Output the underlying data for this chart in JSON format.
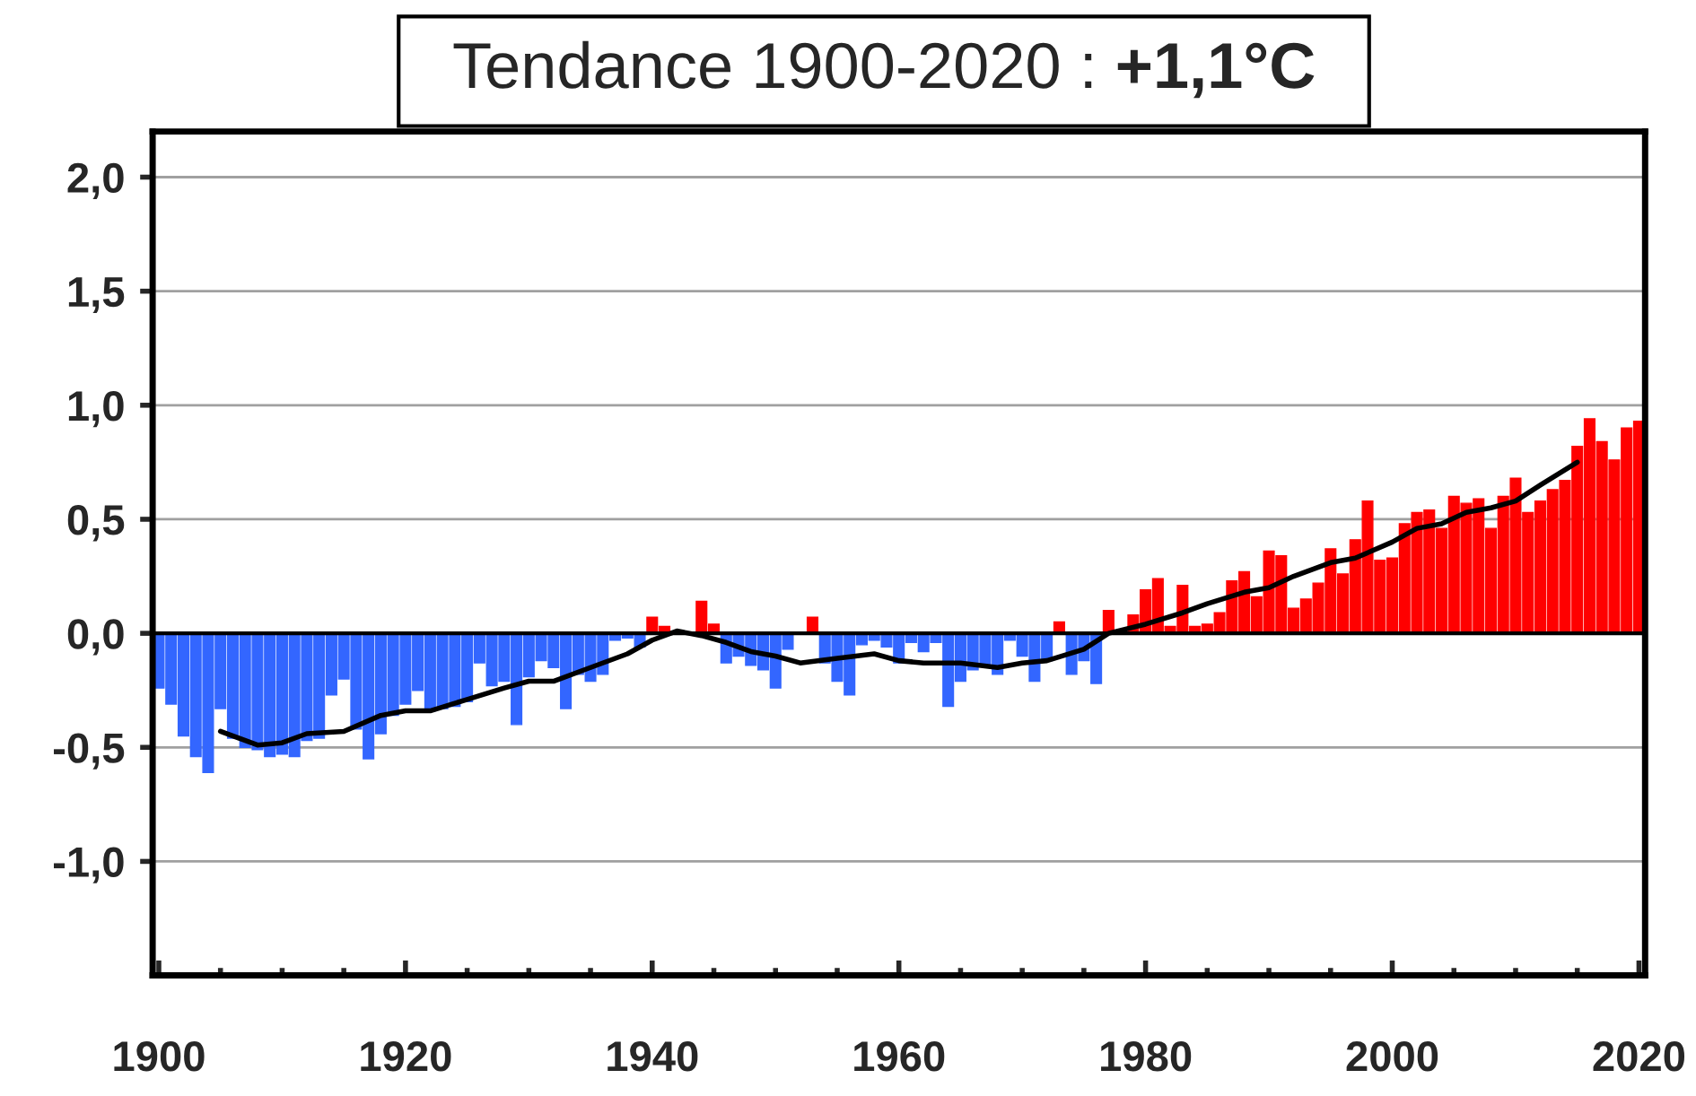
{
  "chart_data": {
    "type": "bar",
    "title": "Tendance 1900-2020 : +1,1°C",
    "x": [
      1900,
      1901,
      1902,
      1903,
      1904,
      1905,
      1906,
      1907,
      1908,
      1909,
      1910,
      1911,
      1912,
      1913,
      1914,
      1915,
      1916,
      1917,
      1918,
      1919,
      1920,
      1921,
      1922,
      1923,
      1924,
      1925,
      1926,
      1927,
      1928,
      1929,
      1930,
      1931,
      1932,
      1933,
      1934,
      1935,
      1936,
      1937,
      1938,
      1939,
      1940,
      1941,
      1942,
      1943,
      1944,
      1945,
      1946,
      1947,
      1948,
      1949,
      1950,
      1951,
      1952,
      1953,
      1954,
      1955,
      1956,
      1957,
      1958,
      1959,
      1960,
      1961,
      1962,
      1963,
      1964,
      1965,
      1966,
      1967,
      1968,
      1969,
      1970,
      1971,
      1972,
      1973,
      1974,
      1975,
      1976,
      1977,
      1978,
      1979,
      1980,
      1981,
      1982,
      1983,
      1984,
      1985,
      1986,
      1987,
      1988,
      1989,
      1990,
      1991,
      1992,
      1993,
      1994,
      1995,
      1996,
      1997,
      1998,
      1999,
      2000,
      2001,
      2002,
      2003,
      2004,
      2005,
      2006,
      2007,
      2008,
      2009,
      2010,
      2011,
      2012,
      2013,
      2014,
      2015,
      2016,
      2017,
      2018,
      2019,
      2020
    ],
    "series": [
      {
        "color": "#3366ff",
        "values": [
          -0.24,
          -0.31,
          -0.45,
          -0.54,
          -0.61,
          -0.33,
          -0.46,
          -0.5,
          -0.51,
          -0.54,
          -0.53,
          -0.54,
          -0.47,
          -0.46,
          -0.27,
          -0.2,
          -0.42,
          -0.55,
          -0.44,
          -0.36,
          -0.31,
          -0.25,
          -0.34,
          -0.33,
          -0.32,
          -0.3,
          -0.13,
          -0.23,
          -0.21,
          -0.4,
          -0.19,
          -0.12,
          -0.15,
          -0.33,
          -0.18,
          -0.21,
          -0.18,
          -0.03,
          -0.02,
          -0.06,
          null,
          null,
          null,
          null,
          null,
          null,
          -0.13,
          -0.1,
          -0.14,
          -0.16,
          -0.24,
          -0.07,
          null,
          null,
          -0.13,
          -0.21,
          -0.27,
          -0.05,
          -0.03,
          -0.06,
          -0.13,
          -0.04,
          -0.08,
          -0.04,
          -0.32,
          -0.21,
          -0.16,
          -0.14,
          -0.18,
          -0.03,
          -0.1,
          -0.21,
          -0.12,
          null,
          -0.18,
          -0.12,
          -0.22,
          null,
          null,
          null,
          null,
          null,
          null,
          null,
          null,
          null,
          null,
          null,
          null,
          null,
          null,
          null,
          null,
          null,
          null,
          null,
          null,
          null,
          null,
          null,
          null,
          null,
          null,
          null,
          null,
          null,
          null,
          null,
          null,
          null,
          null,
          null,
          null,
          null,
          null,
          null,
          null,
          null,
          null,
          null,
          null
        ]
      },
      {
        "color": "#ff0000",
        "values": [
          null,
          null,
          null,
          null,
          null,
          null,
          null,
          null,
          null,
          null,
          null,
          null,
          null,
          null,
          null,
          null,
          null,
          null,
          null,
          null,
          null,
          null,
          null,
          null,
          null,
          null,
          null,
          null,
          null,
          null,
          null,
          null,
          null,
          null,
          null,
          null,
          null,
          null,
          null,
          null,
          0.07,
          0.03,
          null,
          null,
          0.14,
          0.04,
          null,
          null,
          null,
          null,
          null,
          null,
          null,
          0.07,
          null,
          null,
          null,
          null,
          null,
          null,
          null,
          null,
          null,
          null,
          null,
          null,
          null,
          null,
          null,
          null,
          null,
          null,
          null,
          0.05,
          null,
          null,
          null,
          0.1,
          null,
          0.08,
          0.19,
          0.24,
          0.03,
          0.21,
          0.03,
          0.04,
          0.09,
          0.23,
          0.27,
          0.16,
          0.36,
          0.34,
          0.11,
          0.15,
          0.22,
          0.37,
          0.26,
          0.41,
          0.58,
          0.32,
          0.33,
          0.48,
          0.53,
          0.54,
          0.46,
          0.6,
          0.57,
          0.59,
          0.46,
          0.6,
          0.68,
          0.53,
          0.58,
          0.63,
          0.67,
          0.82,
          0.94,
          0.84,
          0.76,
          0.9,
          0.93
        ]
      },
      {
        "type": "line",
        "color": "#000000",
        "x": [
          1905,
          1908,
          1910,
          1912,
          1915,
          1918,
          1920,
          1922,
          1925,
          1928,
          1930,
          1932,
          1935,
          1938,
          1940,
          1942,
          1944,
          1946,
          1948,
          1950,
          1952,
          1955,
          1958,
          1960,
          1962,
          1965,
          1968,
          1970,
          1972,
          1975,
          1977,
          1980,
          1983,
          1985,
          1988,
          1990,
          1992,
          1995,
          1997,
          2000,
          2002,
          2004,
          2006,
          2008,
          2010,
          2012,
          2015
        ],
        "values": [
          -0.43,
          -0.49,
          -0.48,
          -0.44,
          -0.43,
          -0.36,
          -0.34,
          -0.34,
          -0.29,
          -0.24,
          -0.21,
          -0.21,
          -0.15,
          -0.09,
          -0.03,
          0.01,
          -0.01,
          -0.04,
          -0.08,
          -0.1,
          -0.13,
          -0.11,
          -0.09,
          -0.12,
          -0.13,
          -0.13,
          -0.15,
          -0.13,
          -0.12,
          -0.07,
          0.0,
          0.04,
          0.09,
          0.13,
          0.18,
          0.2,
          0.25,
          0.31,
          0.33,
          0.4,
          0.46,
          0.48,
          0.53,
          0.55,
          0.58,
          0.65,
          0.75
        ]
      }
    ],
    "xlim": [
      1899.5,
      2020.5
    ],
    "xticks": [
      1900,
      {
        "value": 1905,
        "label": null
      },
      1920,
      {
        "value": 1910,
        "label": null
      },
      {
        "value": 1915,
        "label": null
      },
      {
        "value": 1925,
        "label": null
      },
      {
        "value": 1930,
        "label": null
      },
      {
        "value": 1935,
        "label": null
      },
      1940,
      {
        "value": 1945,
        "label": null
      },
      {
        "value": 1950,
        "label": null
      },
      {
        "value": 1955,
        "label": null
      },
      1960,
      {
        "value": 1965,
        "label": null
      },
      {
        "value": 1970,
        "label": null
      },
      {
        "value": 1975,
        "label": null
      },
      1980,
      {
        "value": 1985,
        "label": null
      },
      {
        "value": 1990,
        "label": null
      },
      {
        "value": 1995,
        "label": null
      },
      2000,
      {
        "value": 2005,
        "label": null
      },
      {
        "value": 2010,
        "label": null
      },
      {
        "value": 2015,
        "label": null
      },
      2020
    ],
    "ylim": [
      -1.5,
      2.2
    ],
    "yticks": [
      {
        "value": -1.0,
        "label": "-1,0"
      },
      {
        "value": -0.5,
        "label": "-0,5"
      },
      {
        "value": 0.0,
        "label": "0,0"
      },
      {
        "value": 0.5,
        "label": "0,5"
      },
      {
        "value": 1.0,
        "label": "1,0"
      },
      {
        "value": 1.5,
        "label": "1,5"
      },
      {
        "value": 2.0,
        "label": "2,0"
      }
    ],
    "ref_lines": [
      {
        "axis": "y",
        "value": 0.0,
        "color": "#000000"
      }
    ],
    "grid": "y",
    "legend": false
  }
}
